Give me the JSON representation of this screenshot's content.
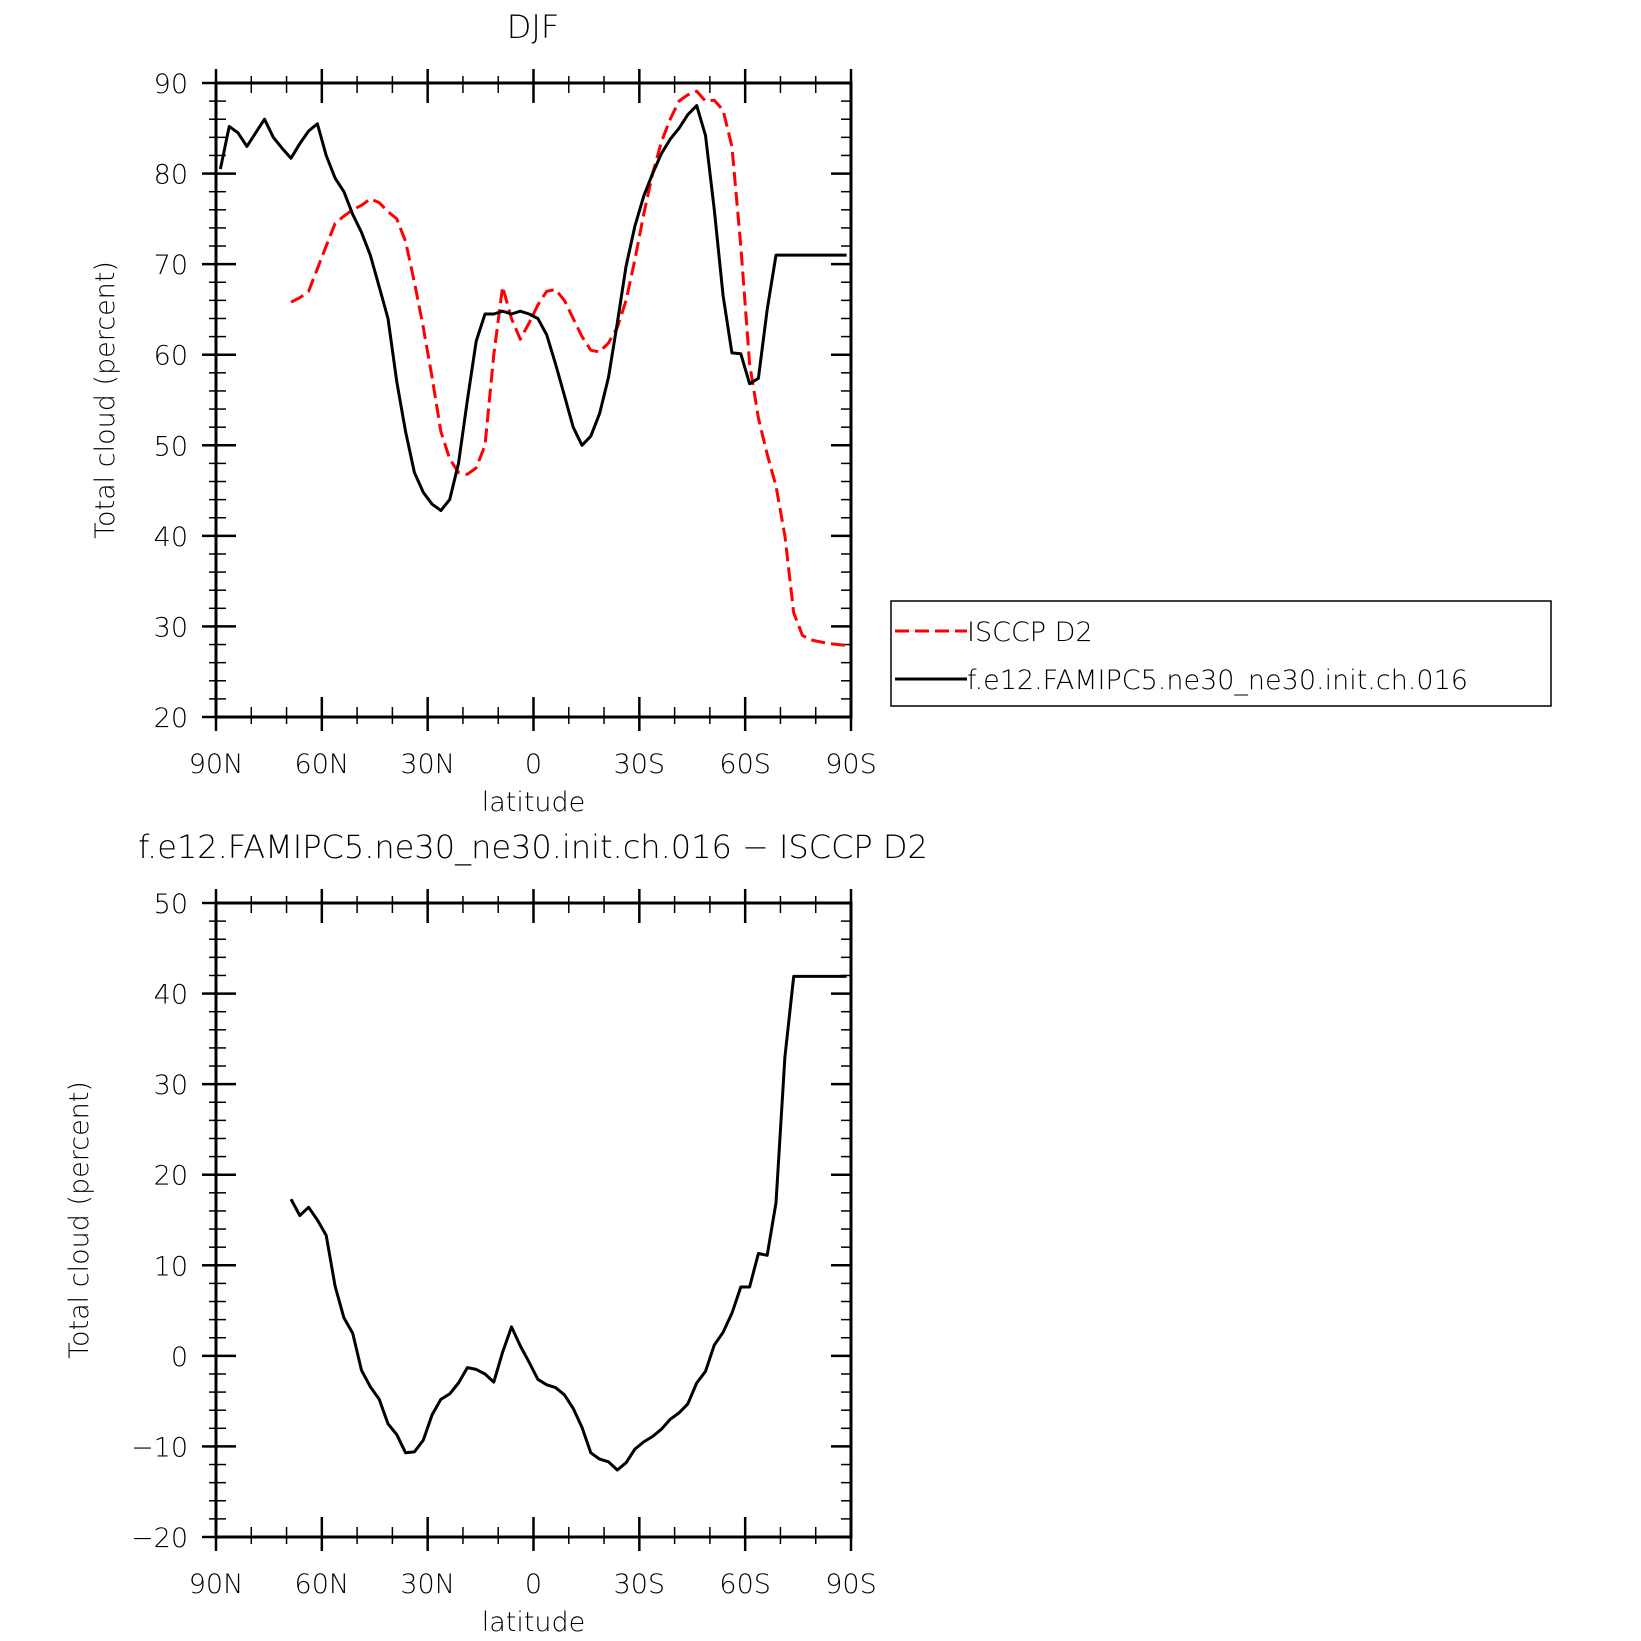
{
  "chart_data": [
    {
      "type": "line",
      "title": "DJF",
      "xlabel": "latitude",
      "ylabel": "Total cloud (percent)",
      "xlim": [
        90,
        -90
      ],
      "ylim": [
        20,
        90
      ],
      "x_ticks": [
        90,
        60,
        30,
        0,
        -30,
        -60,
        -90
      ],
      "x_tick_labels": [
        "90N",
        "60N",
        "30N",
        "0",
        "30S",
        "60S",
        "90S"
      ],
      "y_ticks": [
        20,
        30,
        40,
        50,
        60,
        70,
        80,
        90
      ],
      "y_tick_labels": [
        "20",
        "30",
        "40",
        "50",
        "60",
        "70",
        "80",
        "90"
      ],
      "legend": {
        "placement": "right-outside"
      },
      "series": [
        {
          "name": "ISCCP D2",
          "color": "#ff0000",
          "dash": "dashed",
          "x": [
            68.75,
            66.25,
            63.75,
            61.25,
            58.75,
            56.25,
            53.75,
            51.25,
            48.75,
            46.25,
            43.75,
            41.25,
            38.75,
            36.25,
            33.75,
            31.25,
            28.75,
            26.25,
            23.75,
            21.25,
            18.75,
            16.25,
            13.75,
            11.25,
            8.75,
            6.25,
            3.75,
            1.25,
            -1.25,
            -3.75,
            -6.25,
            -8.75,
            -11.25,
            -13.75,
            -16.25,
            -18.75,
            -21.25,
            -23.75,
            -26.25,
            -28.75,
            -31.25,
            -33.75,
            -36.25,
            -38.75,
            -41.25,
            -43.75,
            -46.25,
            -48.75,
            -51.25,
            -53.75,
            -56.25,
            -58.75,
            -61.25,
            -63.75,
            -66.25,
            -68.75,
            -71.25,
            -73.75,
            -76.25,
            -78.75,
            -81.25,
            -83.75,
            -86.25,
            -88.75
          ],
          "y": [
            65.8,
            66.3,
            67.0,
            69.5,
            72.0,
            74.5,
            75.3,
            76.0,
            76.5,
            77.2,
            76.8,
            75.8,
            75.0,
            72.5,
            68.0,
            63.0,
            57.5,
            51.5,
            48.5,
            47.0,
            46.8,
            47.5,
            50.0,
            60.0,
            67.5,
            64.0,
            61.7,
            63.5,
            65.5,
            67.0,
            67.2,
            66.0,
            64.0,
            62.0,
            60.5,
            60.3,
            61.3,
            63.0,
            66.0,
            70.5,
            75.5,
            80.0,
            83.5,
            86.0,
            88.0,
            88.7,
            89.1,
            88.0,
            88.1,
            87.0,
            83.0,
            72.0,
            59.0,
            53.0,
            49.0,
            45.5,
            40.0,
            31.5,
            29.0,
            28.5,
            28.3,
            28.1,
            28.0,
            27.9
          ]
        },
        {
          "name": "f.e12.FAMIPC5.ne30_ne30.init.ch.016",
          "color": "#000000",
          "dash": "solid",
          "x": [
            88.75,
            86.25,
            83.75,
            81.25,
            78.75,
            76.25,
            73.75,
            71.25,
            68.75,
            66.25,
            63.75,
            61.25,
            58.75,
            56.25,
            53.75,
            51.25,
            48.75,
            46.25,
            43.75,
            41.25,
            38.75,
            36.25,
            33.75,
            31.25,
            28.75,
            26.25,
            23.75,
            21.25,
            18.75,
            16.25,
            13.75,
            11.25,
            8.75,
            6.25,
            3.75,
            1.25,
            -1.25,
            -3.75,
            -6.25,
            -8.75,
            -11.25,
            -13.75,
            -16.25,
            -18.75,
            -21.25,
            -23.75,
            -26.25,
            -28.75,
            -31.25,
            -33.75,
            -36.25,
            -38.75,
            -41.25,
            -43.75,
            -46.25,
            -48.75,
            -51.25,
            -53.75,
            -56.25,
            -58.75,
            -61.25,
            -63.75,
            -66.25,
            -68.75,
            -71.25,
            -73.75,
            -76.25,
            -78.75,
            -81.25,
            -83.75,
            -86.25,
            -88.75
          ],
          "y": [
            80.5,
            85.2,
            84.5,
            83.0,
            84.5,
            86.0,
            84.0,
            82.8,
            81.7,
            83.3,
            84.7,
            85.5,
            82.0,
            79.5,
            78.0,
            75.5,
            73.5,
            71.0,
            67.5,
            64.0,
            57.0,
            51.5,
            47.0,
            44.8,
            43.5,
            42.8,
            44.0,
            48.0,
            55.0,
            61.5,
            64.5,
            64.5,
            64.8,
            64.5,
            64.8,
            64.5,
            64.0,
            62.2,
            59.0,
            55.5,
            52.0,
            50.0,
            51.0,
            53.5,
            57.5,
            63.5,
            69.8,
            74.2,
            77.5,
            80.0,
            82.2,
            83.8,
            85.0,
            86.5,
            87.5,
            84.2,
            76.0,
            66.5,
            60.2,
            60.1,
            56.8,
            57.4,
            65.0,
            71.0,
            71.0,
            71.0,
            71.0,
            71.0,
            71.0,
            71.0,
            71.0,
            71.0
          ]
        }
      ]
    },
    {
      "type": "line",
      "title": "f.e12.FAMIPC5.ne30_ne30.init.ch.016 − ISCCP D2",
      "xlabel": "latitude",
      "ylabel": "Total cloud (percent)",
      "xlim": [
        90,
        -90
      ],
      "ylim": [
        -20,
        50
      ],
      "x_ticks": [
        90,
        60,
        30,
        0,
        -30,
        -60,
        -90
      ],
      "x_tick_labels": [
        "90N",
        "60N",
        "30N",
        "0",
        "30S",
        "60S",
        "90S"
      ],
      "y_ticks": [
        -20,
        -10,
        0,
        10,
        20,
        30,
        40,
        50
      ],
      "y_tick_labels": [
        "−20",
        "−10",
        "0",
        "10",
        "20",
        "30",
        "40",
        "50"
      ],
      "series": [
        {
          "color": "#000000",
          "dash": "solid",
          "x": [
            68.75,
            66.25,
            63.75,
            61.25,
            58.75,
            56.25,
            53.75,
            51.25,
            48.75,
            46.25,
            43.75,
            41.25,
            38.75,
            36.25,
            33.75,
            31.25,
            28.75,
            26.25,
            23.75,
            21.25,
            18.75,
            16.25,
            13.75,
            11.25,
            8.75,
            6.25,
            3.75,
            1.25,
            -1.25,
            -3.75,
            -6.25,
            -8.75,
            -11.25,
            -13.75,
            -16.25,
            -18.75,
            -21.25,
            -23.75,
            -26.25,
            -28.75,
            -31.25,
            -33.75,
            -36.25,
            -38.75,
            -41.25,
            -43.75,
            -46.25,
            -48.75,
            -51.25,
            -53.75,
            -56.25,
            -58.75,
            -61.25,
            -63.75,
            -66.25,
            -68.75,
            -71.25,
            -73.75,
            -76.25,
            -78.75,
            -81.25,
            -83.75,
            -86.25,
            -88.75
          ],
          "y": [
            17.3,
            15.5,
            16.4,
            15.0,
            13.3,
            7.7,
            4.2,
            2.5,
            -1.6,
            -3.4,
            -4.8,
            -7.5,
            -8.7,
            -10.7,
            -10.6,
            -9.3,
            -6.5,
            -4.8,
            -4.2,
            -3.0,
            -1.3,
            -1.5,
            -2.0,
            -2.9,
            0.4,
            3.2,
            1.1,
            -0.7,
            -2.6,
            -3.2,
            -3.5,
            -4.3,
            -5.8,
            -7.9,
            -10.7,
            -11.4,
            -11.7,
            -12.6,
            -11.8,
            -10.3,
            -9.5,
            -8.9,
            -8.1,
            -7.0,
            -6.3,
            -5.3,
            -3.0,
            -1.7,
            1.2,
            2.6,
            4.7,
            7.6,
            7.6,
            11.3,
            11.1,
            16.9,
            33.0,
            41.9,
            41.9,
            41.9,
            41.9,
            41.9,
            41.9,
            41.9
          ]
        }
      ]
    }
  ]
}
